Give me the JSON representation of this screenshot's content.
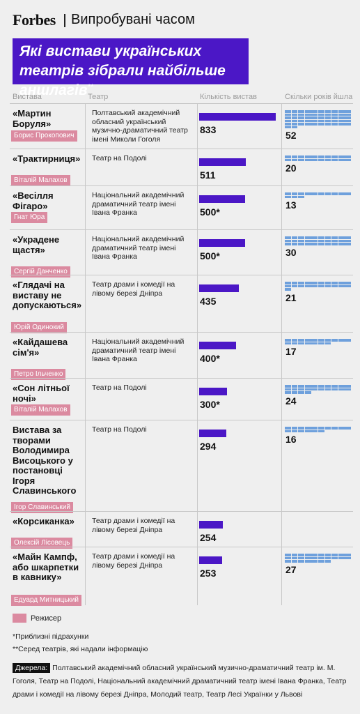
{
  "header": {
    "logo": "Forbes",
    "section": "Випробувані часом"
  },
  "title": {
    "text": "Які вистави українських театрів зібрали найбільше аншлагів",
    "mark": "**"
  },
  "columns": {
    "play": "Вистава",
    "theater": "Театр",
    "shows": "Кількість вистав",
    "years": "Скільки років йшла"
  },
  "legend": {
    "director_label": "Режисер",
    "director_color": "#db8aa0",
    "bar_color": "#4b17c6",
    "years_color": "#6ea0dc"
  },
  "notes": {
    "approx": "*Приблизні підрахунки",
    "among": "**Серед театрів, які надали інформацію"
  },
  "sources": {
    "label": "Джерела:",
    "text": "Полтавський академічний обласний український музично-драматичний театр ім. М. Гоголя, Театр на Подолі, Національний академічний драматичний театр імені Івана Франка, Театр драми і комедії на лівому березі Дніпра, Молодий театр, Театр Лесі Українки у Львові"
  },
  "chart_data": {
    "type": "bar",
    "series": [
      {
        "name": "Кількість вистав",
        "values": [
          833,
          511,
          500,
          500,
          435,
          400,
          300,
          294,
          254,
          253
        ]
      },
      {
        "name": "Скільки років йшла",
        "values": [
          52,
          20,
          13,
          30,
          21,
          17,
          24,
          16,
          null,
          27
        ]
      }
    ],
    "rows": [
      {
        "play": "«Мартин Боруля»",
        "director": "Борис Прокопович",
        "theater": "Полтавський академічний обласний український музично-драматичний театр імені Миколи Гоголя",
        "shows": 833,
        "shows_label": "833",
        "years": 52,
        "years_label": "52"
      },
      {
        "play": "«Трактирниця»",
        "director": "Віталій Малахов",
        "theater": "Театр на Подолі",
        "shows": 511,
        "shows_label": "511",
        "years": 20,
        "years_label": "20"
      },
      {
        "play": "«Весілля Фігаро»",
        "director": "Гнат Юра",
        "theater": "Національний академічний драматичний театр імені Івана Франка",
        "shows": 500,
        "shows_label": "500*",
        "years": 13,
        "years_label": "13"
      },
      {
        "play": "«Украдене щастя»",
        "director": "Сергій Данченко",
        "theater": "Національний академічний драматичний театр імені Івана Франка",
        "shows": 500,
        "shows_label": "500*",
        "years": 30,
        "years_label": "30"
      },
      {
        "play": "«Глядачі на виставу не допускаються»",
        "director": "Юрій Одинокий",
        "theater": "Театр драми і комедії на лівому березі Дніпра",
        "shows": 435,
        "shows_label": "435",
        "years": 21,
        "years_label": "21"
      },
      {
        "play": "«Кайдашева сім'я»",
        "director": "Петро Ільченко",
        "theater": "Національний академічний драматичний театр імені Івана Франка",
        "shows": 400,
        "shows_label": "400*",
        "years": 17,
        "years_label": "17"
      },
      {
        "play": "«Сон літньої ночі»",
        "director": "Віталій Малахов",
        "theater": "Театр на Подолі",
        "shows": 300,
        "shows_label": "300*",
        "years": 24,
        "years_label": "24"
      },
      {
        "play": "Вистава за творами Володимира Висоцького у постановці Ігоря Славинського",
        "director": "Ігор Славинський",
        "theater": "Театр на Подолі",
        "shows": 294,
        "shows_label": "294",
        "years": 16,
        "years_label": "16"
      },
      {
        "play": "«Корсиканка»",
        "director": "Олексій Лісовець",
        "theater": "Театр драми і комедії на лівому березі Дніпра",
        "shows": 254,
        "shows_label": "254",
        "years": null,
        "years_label": ""
      },
      {
        "play": "«Майн Кампф, або шкарпетки в кавнику»",
        "director": "Едуард Митницький",
        "theater": "Театр драми і комедії на лівому березі Дніпра",
        "shows": 253,
        "shows_label": "253",
        "years": 27,
        "years_label": "27"
      }
    ]
  }
}
